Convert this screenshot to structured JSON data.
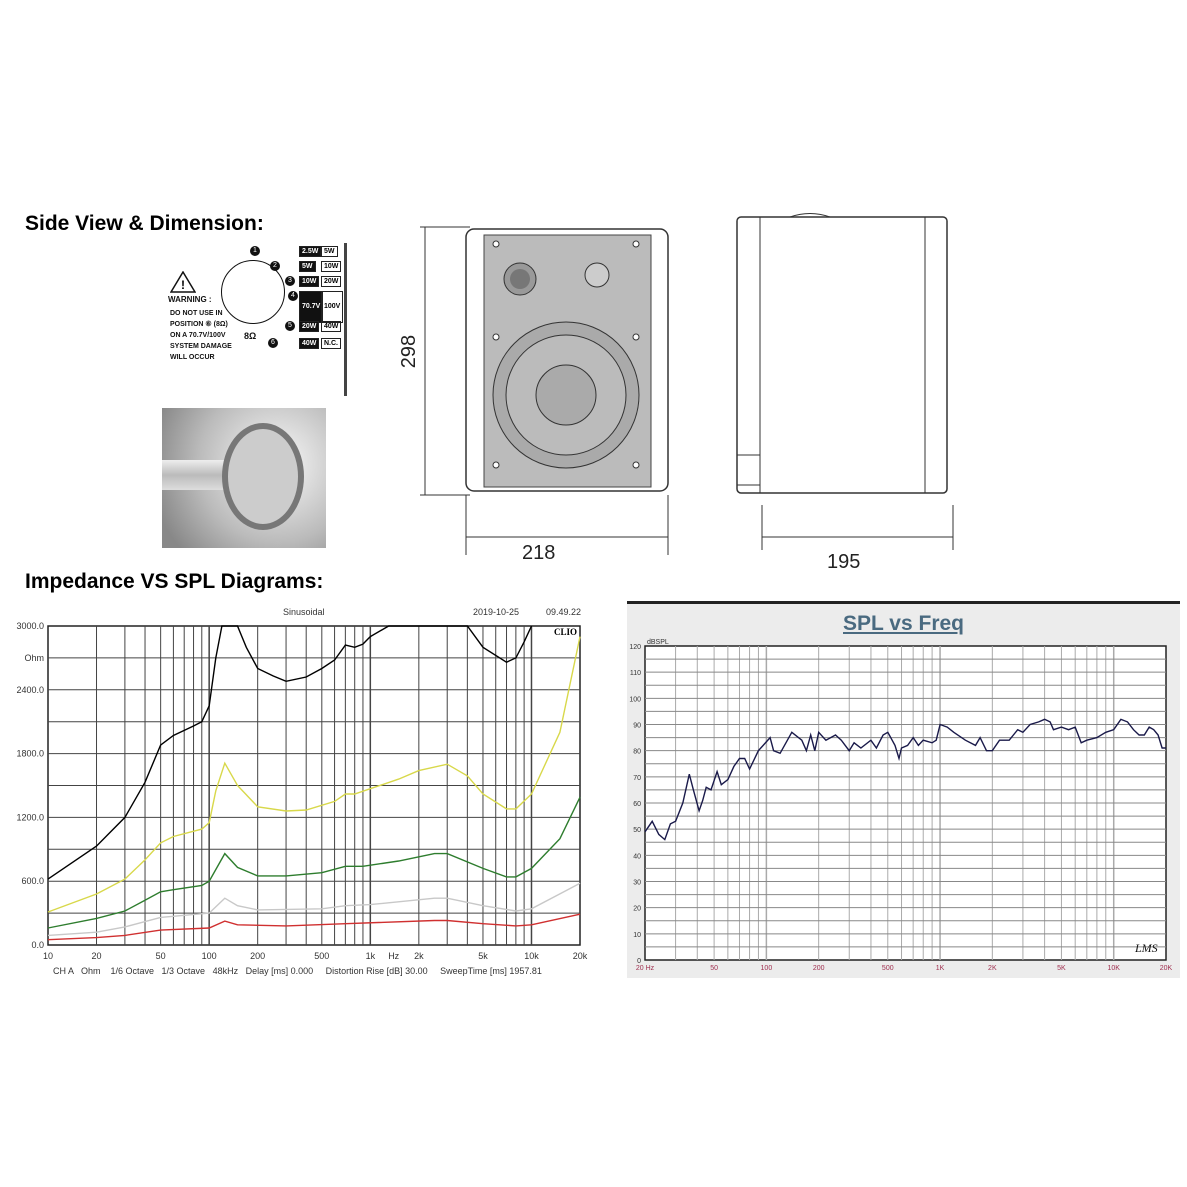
{
  "headings": {
    "side_view": "Side View & Dimension:",
    "diagrams": "Impedance VS SPL Diagrams:"
  },
  "wiring_label": {
    "warning_title": "WARNING :",
    "warning_lines": [
      "DO NOT USE IN",
      "POSITION ⑥ (8Ω)",
      "ON A 70.7V/100V",
      "SYSTEM DAMAGE",
      "WILL OCCUR"
    ],
    "ohm_label": "8Ω",
    "taps": [
      [
        "2.5W",
        "5W"
      ],
      [
        "5W",
        "10W"
      ],
      [
        "10W",
        "20W"
      ],
      [
        "70.7V",
        "100V"
      ],
      [
        "20W",
        "40W"
      ],
      [
        "40W",
        "N.C."
      ]
    ],
    "positions": [
      "1",
      "2",
      "3",
      "4",
      "5",
      "6"
    ]
  },
  "dimensions": {
    "height": "298",
    "width": "218",
    "depth": "195"
  },
  "chart_data": [
    {
      "type": "line",
      "header": {
        "mode": "Sinusoidal",
        "date": "2019-10-25",
        "time": "09.49.22",
        "brand": "CLIO"
      },
      "ylabel": "Ohm",
      "xlabel": "Hz",
      "x_scale": "log",
      "xlim": [
        10,
        20000
      ],
      "ylim": [
        0,
        3000
      ],
      "grid": true,
      "y_ticks": [
        "3000.0",
        "2400.0",
        "1800.0",
        "1200.0",
        "600.0",
        "0.0"
      ],
      "x_ticks": [
        "10",
        "20",
        "50",
        "100",
        "200",
        "500",
        "1k",
        "2k",
        "5k",
        "10k",
        "20k"
      ],
      "footer": "CH A   Ohm    1/6 Octave   1/3 Octave   48kHz   Delay [ms] 0.000     Distortion Rise [dB] 30.00     SweepTime [ms] 1957.81",
      "series": [
        {
          "color": "#000000",
          "points": [
            [
              10,
              620
            ],
            [
              20,
              930
            ],
            [
              30,
              1200
            ],
            [
              40,
              1530
            ],
            [
              50,
              1880
            ],
            [
              60,
              1970
            ],
            [
              80,
              2060
            ],
            [
              90,
              2100
            ],
            [
              100,
              2250
            ],
            [
              110,
              2700
            ],
            [
              120,
              3000
            ],
            [
              150,
              3000
            ],
            [
              170,
              2800
            ],
            [
              200,
              2600
            ],
            [
              250,
              2530
            ],
            [
              300,
              2480
            ],
            [
              400,
              2520
            ],
            [
              500,
              2600
            ],
            [
              600,
              2680
            ],
            [
              700,
              2820
            ],
            [
              800,
              2800
            ],
            [
              900,
              2830
            ],
            [
              1000,
              2900
            ],
            [
              1300,
              3000
            ],
            [
              4000,
              3000
            ],
            [
              5000,
              2800
            ],
            [
              7000,
              2660
            ],
            [
              8000,
              2700
            ],
            [
              9000,
              2850
            ],
            [
              10000,
              3000
            ]
          ]
        },
        {
          "color": "#d8d84a",
          "points": [
            [
              10,
              310
            ],
            [
              20,
              480
            ],
            [
              30,
              620
            ],
            [
              40,
              800
            ],
            [
              50,
              960
            ],
            [
              60,
              1020
            ],
            [
              90,
              1090
            ],
            [
              100,
              1150
            ],
            [
              110,
              1450
            ],
            [
              125,
              1710
            ],
            [
              150,
              1500
            ],
            [
              200,
              1300
            ],
            [
              300,
              1260
            ],
            [
              400,
              1270
            ],
            [
              600,
              1350
            ],
            [
              700,
              1420
            ],
            [
              800,
              1420
            ],
            [
              1000,
              1470
            ],
            [
              1500,
              1560
            ],
            [
              2000,
              1640
            ],
            [
              3000,
              1700
            ],
            [
              4000,
              1590
            ],
            [
              5000,
              1420
            ],
            [
              7000,
              1280
            ],
            [
              8000,
              1280
            ],
            [
              10000,
              1420
            ],
            [
              15000,
              2000
            ],
            [
              20000,
              2900
            ]
          ]
        },
        {
          "color": "#2e7d2e",
          "points": [
            [
              10,
              160
            ],
            [
              20,
              250
            ],
            [
              30,
              320
            ],
            [
              40,
              420
            ],
            [
              50,
              500
            ],
            [
              60,
              520
            ],
            [
              90,
              560
            ],
            [
              100,
              600
            ],
            [
              125,
              860
            ],
            [
              150,
              730
            ],
            [
              200,
              650
            ],
            [
              300,
              650
            ],
            [
              500,
              680
            ],
            [
              700,
              740
            ],
            [
              900,
              740
            ],
            [
              1500,
              790
            ],
            [
              2500,
              860
            ],
            [
              3000,
              860
            ],
            [
              5000,
              720
            ],
            [
              7000,
              640
            ],
            [
              8000,
              640
            ],
            [
              10000,
              720
            ],
            [
              15000,
              1000
            ],
            [
              20000,
              1390
            ]
          ]
        },
        {
          "color": "#c8c8c8",
          "points": [
            [
              10,
              90
            ],
            [
              20,
              120
            ],
            [
              30,
              170
            ],
            [
              50,
              260
            ],
            [
              100,
              300
            ],
            [
              125,
              440
            ],
            [
              150,
              370
            ],
            [
              200,
              330
            ],
            [
              500,
              340
            ],
            [
              700,
              370
            ],
            [
              1000,
              380
            ],
            [
              2500,
              440
            ],
            [
              3000,
              440
            ],
            [
              5000,
              370
            ],
            [
              8000,
              320
            ],
            [
              10000,
              340
            ],
            [
              20000,
              580
            ]
          ]
        },
        {
          "color": "#d03030",
          "points": [
            [
              10,
              50
            ],
            [
              20,
              70
            ],
            [
              30,
              90
            ],
            [
              50,
              140
            ],
            [
              100,
              160
            ],
            [
              125,
              225
            ],
            [
              150,
              190
            ],
            [
              300,
              180
            ],
            [
              700,
              200
            ],
            [
              2500,
              230
            ],
            [
              3000,
              230
            ],
            [
              5000,
              200
            ],
            [
              8000,
              180
            ],
            [
              10000,
              190
            ],
            [
              20000,
              290
            ]
          ]
        }
      ]
    },
    {
      "type": "line",
      "title": "SPL vs Freq",
      "ylabel": "dBSPL",
      "brand": "LMS",
      "x_scale": "log",
      "xlim": [
        20,
        20000
      ],
      "ylim": [
        0,
        120
      ],
      "grid": true,
      "y_ticks": [
        "120",
        "110",
        "100",
        "90",
        "80",
        "70",
        "60",
        "50",
        "40",
        "30",
        "20",
        "10",
        "0"
      ],
      "x_ticks": [
        "20 Hz",
        "50",
        "100",
        "200",
        "500",
        "1K",
        "2K",
        "5K",
        "10K",
        "20K"
      ],
      "series": [
        {
          "color": "#1a1a4a",
          "points": [
            [
              20,
              49
            ],
            [
              22,
              53
            ],
            [
              24,
              48
            ],
            [
              26,
              46
            ],
            [
              28,
              52
            ],
            [
              30,
              53
            ],
            [
              33,
              60
            ],
            [
              36,
              71
            ],
            [
              38,
              65
            ],
            [
              41,
              57
            ],
            [
              43,
              61
            ],
            [
              45,
              66
            ],
            [
              48,
              65
            ],
            [
              52,
              72
            ],
            [
              55,
              67
            ],
            [
              60,
              69
            ],
            [
              65,
              74
            ],
            [
              70,
              77
            ],
            [
              75,
              77
            ],
            [
              80,
              73
            ],
            [
              90,
              80
            ],
            [
              105,
              85
            ],
            [
              110,
              80
            ],
            [
              120,
              79
            ],
            [
              140,
              87
            ],
            [
              160,
              84
            ],
            [
              170,
              80
            ],
            [
              180,
              86
            ],
            [
              190,
              80
            ],
            [
              200,
              87
            ],
            [
              220,
              84
            ],
            [
              250,
              86
            ],
            [
              270,
              84
            ],
            [
              300,
              80
            ],
            [
              320,
              83
            ],
            [
              350,
              81
            ],
            [
              400,
              84
            ],
            [
              430,
              81
            ],
            [
              470,
              86
            ],
            [
              500,
              87
            ],
            [
              550,
              82
            ],
            [
              580,
              77
            ],
            [
              600,
              81
            ],
            [
              650,
              82
            ],
            [
              700,
              85
            ],
            [
              750,
              82
            ],
            [
              800,
              84
            ],
            [
              900,
              83
            ],
            [
              950,
              84
            ],
            [
              1000,
              90
            ],
            [
              1100,
              89
            ],
            [
              1200,
              87
            ],
            [
              1400,
              84
            ],
            [
              1600,
              82
            ],
            [
              1700,
              85
            ],
            [
              1850,
              80
            ],
            [
              2000,
              80
            ],
            [
              2200,
              84
            ],
            [
              2500,
              84
            ],
            [
              2800,
              88
            ],
            [
              3000,
              87
            ],
            [
              3300,
              90
            ],
            [
              3700,
              91
            ],
            [
              4000,
              92
            ],
            [
              4300,
              91
            ],
            [
              4500,
              88
            ],
            [
              5000,
              89
            ],
            [
              5500,
              88
            ],
            [
              6000,
              89
            ],
            [
              6500,
              83
            ],
            [
              7000,
              84
            ],
            [
              8000,
              85
            ],
            [
              9000,
              87
            ],
            [
              10000,
              88
            ],
            [
              11000,
              92
            ],
            [
              12000,
              91
            ],
            [
              13000,
              88
            ],
            [
              14000,
              86
            ],
            [
              15000,
              86
            ],
            [
              16000,
              89
            ],
            [
              17000,
              88
            ],
            [
              18000,
              86
            ],
            [
              19000,
              81
            ],
            [
              20000,
              81
            ]
          ]
        }
      ]
    }
  ]
}
